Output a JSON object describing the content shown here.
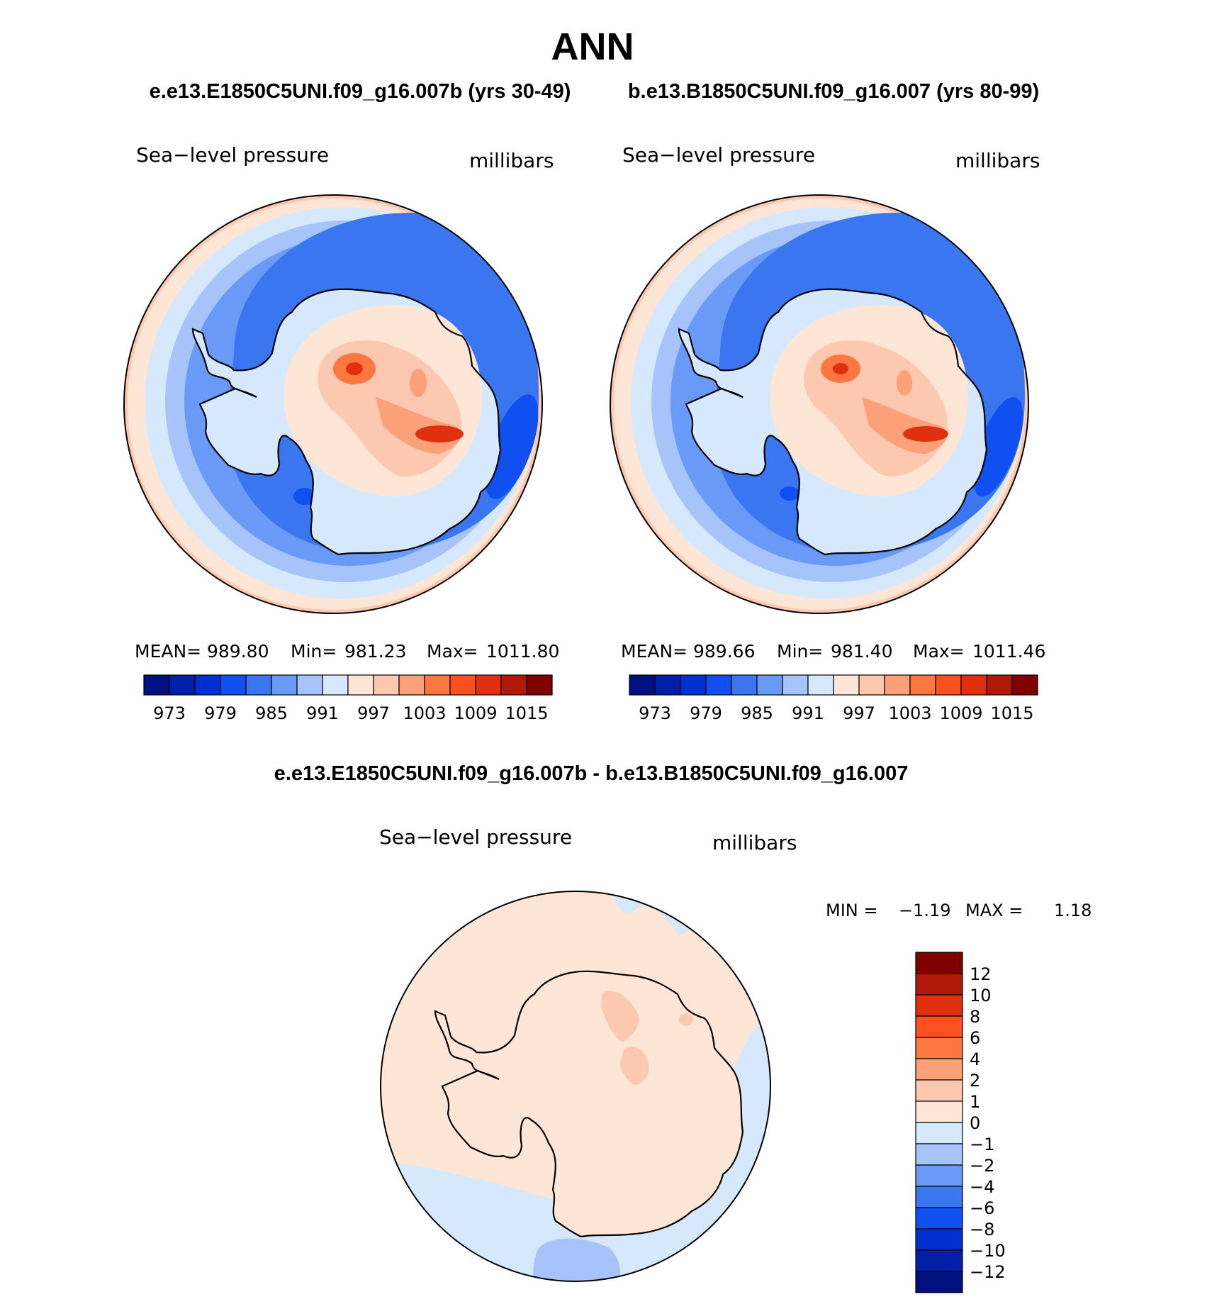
{
  "page": {
    "season": "ANN",
    "subtitle_left": "e.e13.E1850C5UNI.f09_g16.007b (yrs 30-49)",
    "subtitle_right": "b.e13.B1850C5UNI.f09_g16.007 (yrs 80-99)",
    "diff_title": "e.e13.E1850C5UNI.f09_g16.007b - b.e13.B1850C5UNI.f09_g16.007"
  },
  "panels": [
    {
      "variable": "Sea−level pressure",
      "units": "millibars",
      "stats": {
        "mean_label": "MEAN=",
        "mean": "989.80",
        "min_label": "Min=",
        "min": "981.23",
        "max_label": "Max=",
        "max": "1011.80"
      }
    },
    {
      "variable": "Sea−level pressure",
      "units": "millibars",
      "stats": {
        "mean_label": "MEAN=",
        "mean": "989.66",
        "min_label": "Min=",
        "min": "981.40",
        "max_label": "Max=",
        "max": "1011.46"
      }
    }
  ],
  "diff_panel": {
    "variable": "Sea−level pressure",
    "units": "millibars",
    "min_label": "MIN =",
    "min": "−1.19",
    "max_label": "MAX =",
    "max": "1.18"
  },
  "colorbar_abs": {
    "tick_labels": [
      "973",
      "979",
      "985",
      "991",
      "997",
      "1003",
      "1009",
      "1015"
    ],
    "colors": [
      "#00107e",
      "#0020a8",
      "#0030d0",
      "#1050f0",
      "#3a76f0",
      "#6a9af8",
      "#a6c4fa",
      "#d6e8fc",
      "#fde6d6",
      "#fcc8b0",
      "#fca07a",
      "#fc7840",
      "#fc5020",
      "#e03010",
      "#b01808",
      "#800000"
    ]
  },
  "colorbar_diff": {
    "tick_labels": [
      "12",
      "10",
      "8",
      "6",
      "4",
      "2",
      "1",
      "0",
      "−1",
      "−2",
      "−4",
      "−6",
      "−8",
      "−10",
      "−12"
    ],
    "colors_top_to_bottom": [
      "#800000",
      "#b01808",
      "#e03010",
      "#fc5020",
      "#fc7840",
      "#fca07a",
      "#fcc8b0",
      "#fde6d6",
      "#d6e8fc",
      "#a6c4fa",
      "#6a9af8",
      "#3a76f0",
      "#1050f0",
      "#0030d0",
      "#0020a8",
      "#00107e"
    ]
  },
  "palette": {
    "ocean_far": "#fcc8b0",
    "ring_light": "#d6e8fc",
    "ring_mid": "#a6c4fa",
    "ring_med": "#6a9af8",
    "trough": "#3a76f0",
    "trough_deep": "#1050f0",
    "land_pale": "#fde6d6",
    "land_warm": "#fcc8b0",
    "land_hot": "#fca07a",
    "land_peak": "#fc7840",
    "land_max": "#e03010",
    "diff_pos": "#fde6d6",
    "diff_neg": "#d6e8fc",
    "diff_neg2": "#a6c4fa",
    "diff_pos2": "#fcc8b0"
  }
}
